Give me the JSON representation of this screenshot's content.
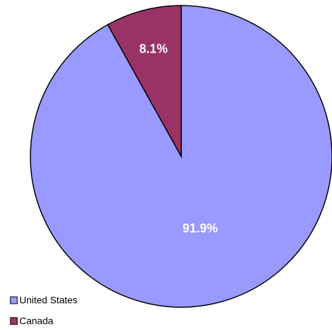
{
  "chart_data": {
    "type": "pie",
    "categories": [
      "United States",
      "Canada"
    ],
    "values": [
      91.9,
      8.1
    ],
    "value_labels": [
      "91.9%",
      "8.1%"
    ],
    "colors": [
      "#9999ff",
      "#993366"
    ],
    "legend": "bottom-left"
  }
}
